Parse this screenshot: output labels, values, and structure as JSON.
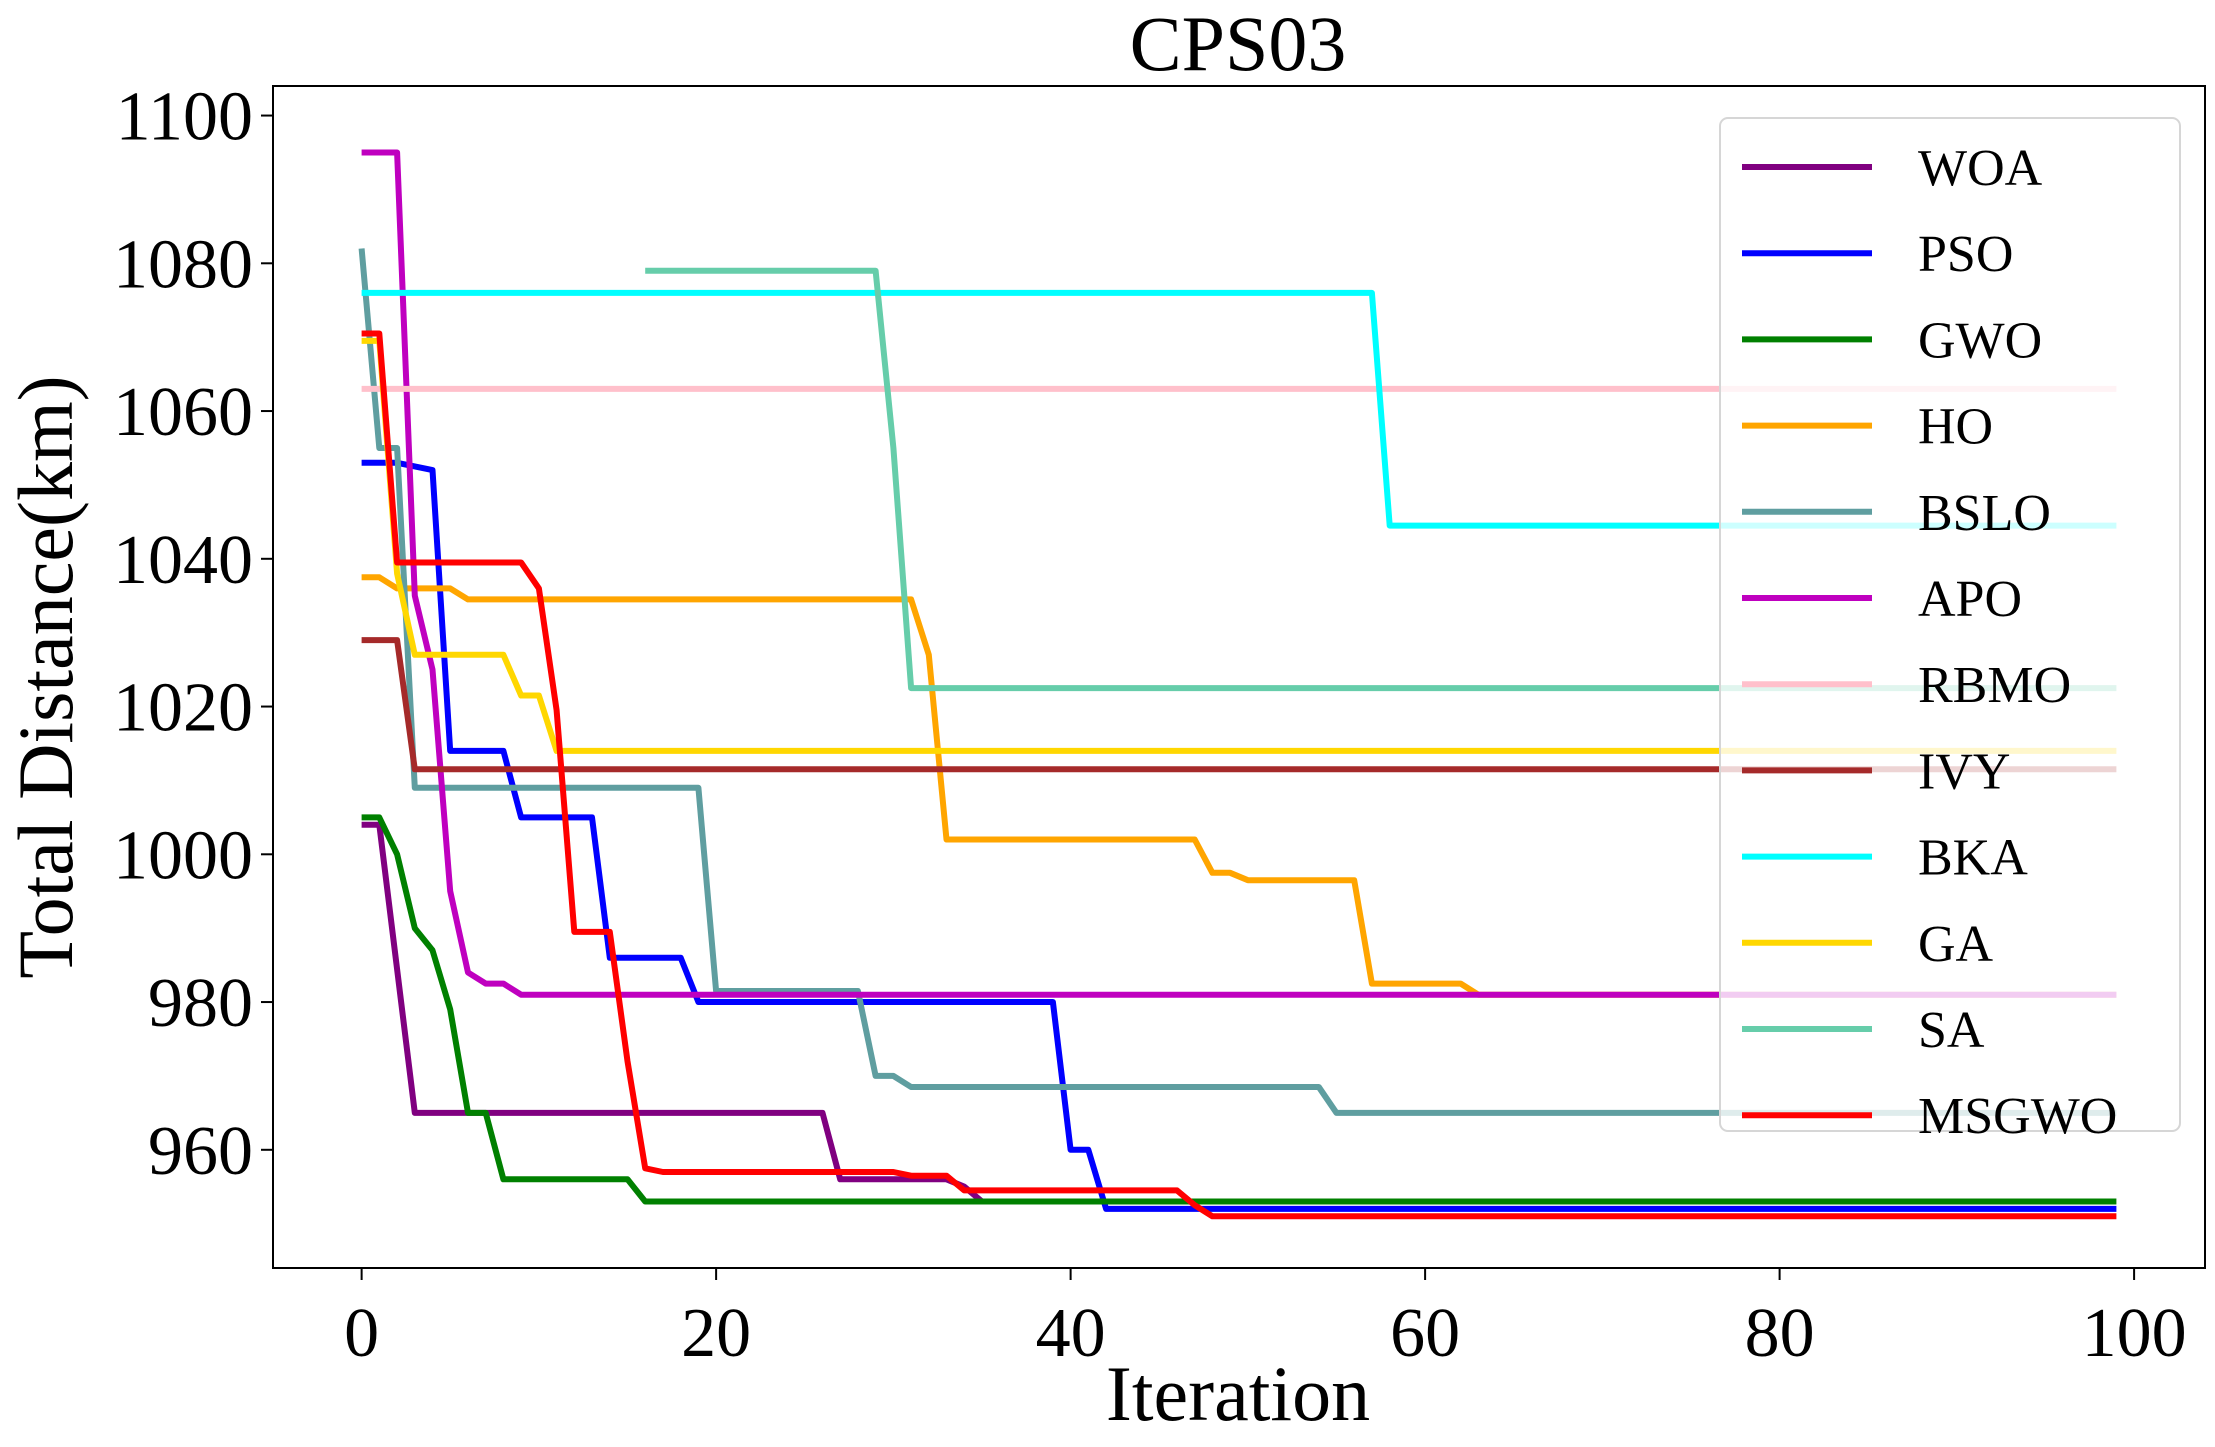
{
  "chart_data": {
    "type": "line",
    "title": "CPS03",
    "xlabel": "Iteration",
    "ylabel": "Total Distance(km)",
    "xlim": [
      -5,
      104
    ],
    "ylim": [
      944,
      1104
    ],
    "xticks": [
      0,
      20,
      40,
      60,
      80,
      100
    ],
    "yticks": [
      960,
      980,
      1000,
      1020,
      1040,
      1060,
      1080,
      1100
    ],
    "grid": false,
    "legend_position": "right",
    "series": [
      {
        "name": "WOA",
        "color": "#800080",
        "x": [
          0,
          1,
          3,
          26,
          27,
          33,
          34,
          35
        ],
        "y": [
          1004,
          1004,
          965,
          965,
          956,
          956,
          955,
          953
        ]
      },
      {
        "name": "PSO",
        "color": "#0000ff",
        "x": [
          0,
          1,
          2,
          4,
          5,
          8,
          9,
          13,
          14,
          18,
          19,
          39,
          40,
          41,
          42,
          99
        ],
        "y": [
          1053,
          1053,
          1053,
          1052,
          1014,
          1014,
          1005,
          1005,
          986,
          986,
          980,
          980,
          960,
          960,
          952,
          952
        ]
      },
      {
        "name": "GWO",
        "color": "#008000",
        "x": [
          0,
          1,
          2,
          3,
          4,
          5,
          6,
          7,
          8,
          15,
          16,
          99
        ],
        "y": [
          1005,
          1005,
          1000,
          990,
          987,
          979,
          965,
          965,
          956,
          956,
          953,
          953
        ]
      },
      {
        "name": "HO",
        "color": "#ffa500",
        "x": [
          0,
          1,
          2,
          5,
          6,
          31,
          32,
          33,
          47,
          48,
          49,
          50,
          56,
          57,
          62,
          63,
          99
        ],
        "y": [
          1037.5,
          1037.5,
          1036,
          1036,
          1034.5,
          1034.5,
          1027,
          1002,
          1002,
          997.5,
          997.5,
          996.5,
          996.5,
          982.5,
          982.5,
          981,
          981
        ]
      },
      {
        "name": "BSLO",
        "color": "#5f9ea0",
        "x": [
          0,
          1,
          2,
          3,
          19,
          20,
          28,
          29,
          30,
          31,
          54,
          55,
          99
        ],
        "y": [
          1082,
          1055,
          1055,
          1009,
          1009,
          981.5,
          981.5,
          970,
          970,
          968.5,
          968.5,
          965,
          965
        ]
      },
      {
        "name": "APO",
        "color": "#bf00bf",
        "x": [
          0,
          1,
          2,
          3,
          4,
          5,
          6,
          7,
          8,
          9,
          99
        ],
        "y": [
          1095,
          1095,
          1095,
          1035,
          1025,
          995,
          984,
          982.5,
          982.5,
          981,
          981
        ]
      },
      {
        "name": "RBMO",
        "color": "#ffc0cb",
        "x": [
          0,
          99
        ],
        "y": [
          1063,
          1063
        ]
      },
      {
        "name": "IVY",
        "color": "#a52a2a",
        "x": [
          0,
          1,
          2,
          3,
          99
        ],
        "y": [
          1029,
          1029,
          1029,
          1011.5,
          1011.5
        ]
      },
      {
        "name": "BKA",
        "color": "#00ffff",
        "x": [
          0,
          57,
          58,
          99
        ],
        "y": [
          1076,
          1076,
          1044.5,
          1044.5
        ]
      },
      {
        "name": "GA",
        "color": "#ffd700",
        "x": [
          0,
          1,
          2,
          3,
          8,
          9,
          10,
          11,
          99
        ],
        "y": [
          1069.5,
          1069.5,
          1038,
          1027,
          1027,
          1021.5,
          1021.5,
          1014,
          1014
        ]
      },
      {
        "name": "SA",
        "color": "#66cdaa",
        "x": [
          16,
          29,
          30,
          31,
          99
        ],
        "y": [
          1079,
          1079,
          1055,
          1022.5,
          1022.5
        ]
      },
      {
        "name": "MSGWO",
        "color": "#ff0000",
        "x": [
          0,
          1,
          2,
          9,
          10,
          11,
          12,
          14,
          15,
          16,
          17,
          30,
          31,
          33,
          34,
          46,
          47,
          48,
          99
        ],
        "y": [
          1070.5,
          1070.5,
          1039.5,
          1039.5,
          1036,
          1019.5,
          989.5,
          989.5,
          972,
          957.5,
          957,
          957,
          956.5,
          956.5,
          954.5,
          954.5,
          952.5,
          951,
          951
        ]
      }
    ]
  }
}
